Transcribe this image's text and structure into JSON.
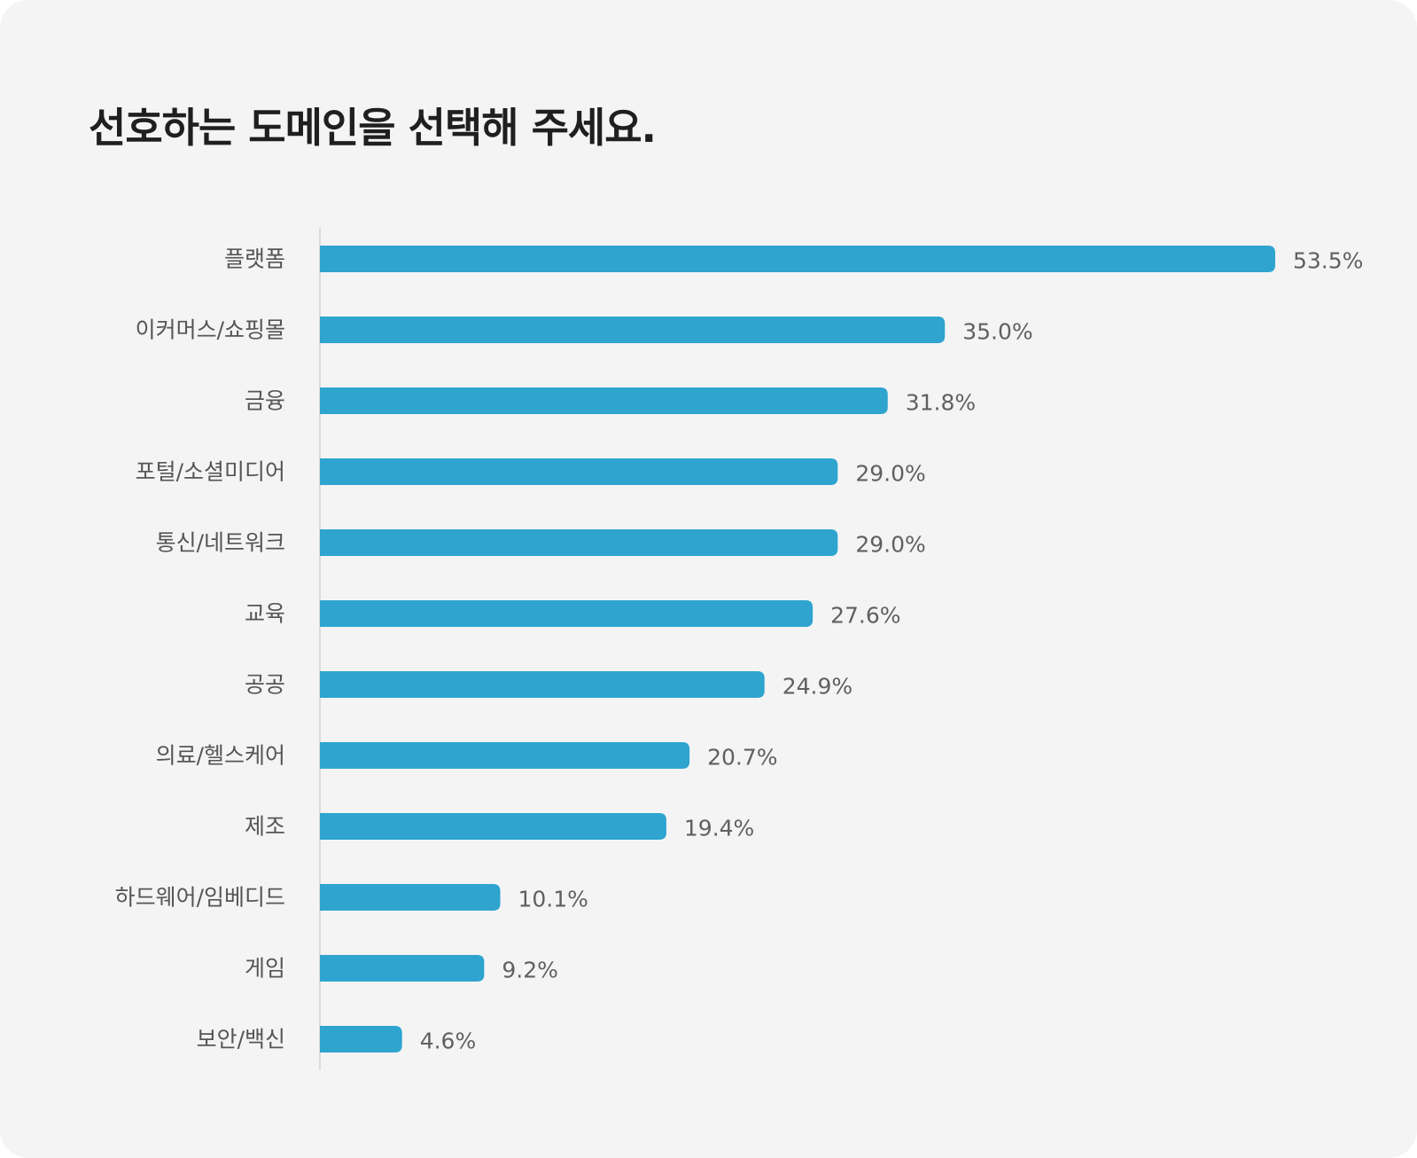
{
  "title": "선호하는 도메인을 선택해 주세요.",
  "colors": {
    "bar": "#2ea4cf",
    "axis": "#dcdcdc",
    "background": "#f4f4f5"
  },
  "chart_data": {
    "type": "bar",
    "orientation": "horizontal",
    "title": "선호하는 도메인을 선택해 주세요.",
    "xlabel": "",
    "ylabel": "",
    "grid": false,
    "xlim": [
      0,
      53.5
    ],
    "categories": [
      "플랫폼",
      "이커머스/쇼핑몰",
      "금융",
      "포털/소셜미디어",
      "통신/네트워크",
      "교육",
      "공공",
      "의료/헬스케어",
      "제조",
      "하드웨어/임베디드",
      "게임",
      "보안/백신"
    ],
    "values": [
      53.5,
      35.0,
      31.8,
      29.0,
      29.0,
      27.6,
      24.9,
      20.7,
      19.4,
      10.1,
      9.2,
      4.6
    ],
    "value_labels": [
      "53.5%",
      "35.0%",
      "31.8%",
      "29.0%",
      "29.0%",
      "27.6%",
      "24.9%",
      "20.7%",
      "19.4%",
      "10.1%",
      "9.2%",
      "4.6%"
    ]
  }
}
